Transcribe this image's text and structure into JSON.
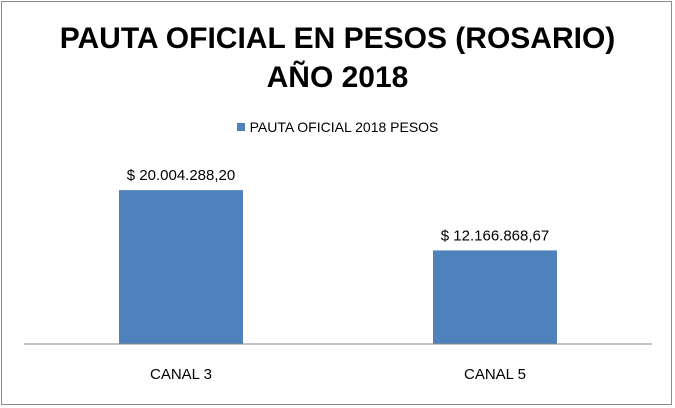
{
  "chart_data": {
    "type": "bar",
    "title": [
      "PAUTA OFICIAL EN PESOS (ROSARIO)",
      "AÑO 2018"
    ],
    "categories": [
      "CANAL 3",
      "CANAL 5"
    ],
    "series": [
      {
        "name": "PAUTA OFICIAL 2018 PESOS",
        "values": [
          20004288.2,
          12166868.67
        ],
        "data_labels": [
          "$ 20.004.288,20",
          "$ 12.166.868,67"
        ],
        "color": "#4f81bd"
      }
    ],
    "ylim": [
      0,
      26000000
    ],
    "grid": false,
    "legend_position": "top"
  }
}
